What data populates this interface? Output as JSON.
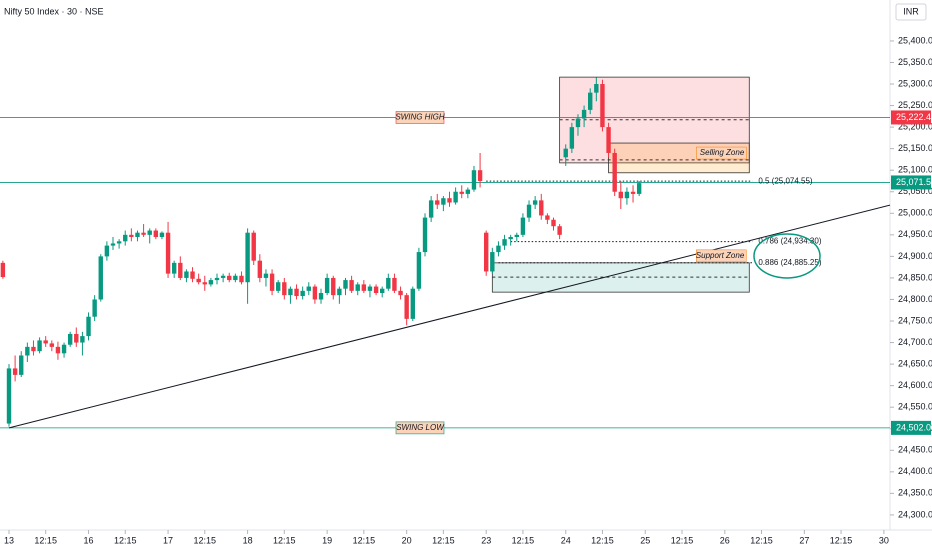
{
  "chart_data": {
    "type": "candlestick",
    "title": "Nifty 50 Index · 30 · NSE",
    "currency": "INR",
    "up_color": "#089981",
    "down_color": "#f23645",
    "x": [
      -1,
      0,
      1,
      2,
      3,
      4,
      5,
      6,
      7,
      8,
      9,
      10,
      11,
      12,
      13,
      14,
      15,
      16,
      17,
      18,
      19,
      20,
      21,
      22,
      23,
      24,
      25,
      26,
      27,
      28,
      29,
      30,
      31,
      32,
      33,
      34,
      35,
      36,
      37,
      38,
      39,
      40,
      41,
      42,
      43,
      44,
      45,
      46,
      47,
      48,
      49,
      50,
      51,
      52,
      53,
      54,
      55,
      56,
      57,
      58,
      59,
      60,
      61,
      62,
      63,
      64,
      65,
      66,
      67,
      68,
      69,
      70,
      71,
      72,
      73,
      74,
      75,
      76,
      77,
      78,
      79,
      80,
      81,
      82,
      83,
      84,
      85,
      86,
      87,
      88,
      89,
      90,
      91,
      92,
      93,
      94,
      95,
      96,
      97,
      98,
      99,
      100,
      101,
      102,
      103
    ],
    "open": [
      24885,
      24512,
      24640,
      24625,
      24670,
      24690,
      24680,
      24705,
      24698,
      24690,
      24675,
      24695,
      24720,
      24700,
      24715,
      24760,
      24800,
      24900,
      24925,
      24930,
      24935,
      24950,
      24945,
      24955,
      24950,
      24960,
      24945,
      24955,
      24860,
      24885,
      24850,
      24865,
      24848,
      24840,
      24835,
      24845,
      24850,
      24855,
      24845,
      24855,
      24840,
      24955,
      24890,
      24850,
      24860,
      24820,
      24840,
      24810,
      24825,
      24808,
      24820,
      24830,
      24800,
      24815,
      24850,
      24810,
      24825,
      24845,
      24820,
      24835,
      24820,
      24830,
      24815,
      24825,
      24850,
      24820,
      24810,
      24755,
      24825,
      24910,
      24990,
      25030,
      25020,
      25035,
      25025,
      25050,
      25045,
      25055,
      25100,
      24955,
      24865,
      24910,
      24925,
      24940,
      24945,
      24950,
      24990,
      25020,
      25030,
      24995,
      24985,
      24970,
      25130,
      25150,
      25200,
      25220,
      25240,
      25280,
      25300,
      25200,
      25140,
      25050,
      25035,
      25050,
      25045
    ],
    "high": [
      24890,
      24650,
      24670,
      24680,
      24700,
      24705,
      24712,
      24715,
      24705,
      24702,
      24700,
      24725,
      24735,
      24725,
      24770,
      24810,
      24905,
      24935,
      24945,
      24940,
      24960,
      24965,
      24960,
      24975,
      24965,
      24965,
      24958,
      24980,
      24890,
      24900,
      24870,
      24875,
      24860,
      24855,
      24850,
      24860,
      24860,
      24862,
      24860,
      24865,
      24965,
      24960,
      24905,
      24870,
      24870,
      24845,
      24850,
      24830,
      24835,
      24830,
      24840,
      24835,
      24825,
      24860,
      24855,
      24830,
      24850,
      24855,
      24840,
      24845,
      24835,
      24835,
      24830,
      24860,
      24860,
      24830,
      24815,
      24830,
      24920,
      25000,
      25040,
      25045,
      25040,
      25050,
      25060,
      25065,
      25060,
      25110,
      25140,
      24960,
      24920,
      24935,
      24950,
      24950,
      24955,
      25000,
      25030,
      25040,
      25045,
      25000,
      24990,
      24975,
      25160,
      25210,
      25230,
      25250,
      25290,
      25315,
      25310,
      25210,
      25150,
      25075,
      25060,
      25065,
      25075
    ],
    "low": [
      24848,
      24505,
      24610,
      24620,
      24655,
      24670,
      24675,
      24690,
      24680,
      24660,
      24665,
      24690,
      24690,
      24670,
      24705,
      24750,
      24795,
      24890,
      24915,
      24918,
      24925,
      24935,
      24935,
      24945,
      24930,
      24940,
      24940,
      24850,
      24850,
      24845,
      24840,
      24840,
      24835,
      24820,
      24830,
      24835,
      24840,
      24840,
      24840,
      24835,
      24790,
      24880,
      24840,
      24830,
      24810,
      24815,
      24800,
      24790,
      24800,
      24800,
      24810,
      24790,
      24790,
      24810,
      24800,
      24790,
      24810,
      24815,
      24810,
      24815,
      24805,
      24810,
      24805,
      24820,
      24815,
      24800,
      24740,
      24750,
      24820,
      24900,
      24980,
      25010,
      25005,
      25015,
      25020,
      25035,
      25035,
      25050,
      25060,
      24855,
      24860,
      24900,
      24915,
      24925,
      24935,
      24945,
      24980,
      25010,
      24985,
      24975,
      24960,
      24940,
      25110,
      25140,
      25180,
      25200,
      25230,
      25260,
      25190,
      25130,
      25040,
      25010,
      25020,
      25025,
      25040
    ],
    "close": [
      24852,
      24640,
      24625,
      24670,
      24690,
      24680,
      24705,
      24698,
      24690,
      24675,
      24695,
      24720,
      24700,
      24715,
      24760,
      24800,
      24900,
      24925,
      24930,
      24935,
      24950,
      24945,
      24955,
      24950,
      24960,
      24945,
      24955,
      24860,
      24885,
      24850,
      24865,
      24848,
      24840,
      24835,
      24845,
      24850,
      24855,
      24845,
      24855,
      24840,
      24955,
      24890,
      24850,
      24860,
      24820,
      24840,
      24810,
      24825,
      24808,
      24820,
      24830,
      24800,
      24815,
      24850,
      24810,
      24825,
      24845,
      24820,
      24835,
      24820,
      24830,
      24815,
      24825,
      24850,
      24820,
      24810,
      24755,
      24825,
      24910,
      24990,
      25030,
      25020,
      25035,
      25025,
      25050,
      25045,
      25055,
      25100,
      25075,
      24865,
      24910,
      24925,
      24940,
      24945,
      24950,
      24990,
      25020,
      25030,
      24995,
      24985,
      24970,
      24950,
      25150,
      25200,
      25220,
      25240,
      25280,
      25300,
      25200,
      25140,
      25050,
      25035,
      25050,
      25045,
      25070
    ],
    "xlim": [
      -1.47,
      144
    ],
    "xticks": [
      {
        "value": 0,
        "label": "13"
      },
      {
        "value": 6,
        "label": "12:15"
      },
      {
        "value": 13,
        "label": "16"
      },
      {
        "value": 19,
        "label": "12:15"
      },
      {
        "value": 26,
        "label": "17"
      },
      {
        "value": 32,
        "label": "12:15"
      },
      {
        "value": 39,
        "label": "18"
      },
      {
        "value": 45,
        "label": "12:15"
      },
      {
        "value": 52,
        "label": "19"
      },
      {
        "value": 58,
        "label": "12:15"
      },
      {
        "value": 65,
        "label": "20"
      },
      {
        "value": 71,
        "label": "12:15"
      },
      {
        "value": 78,
        "label": "23"
      },
      {
        "value": 84,
        "label": "12:15"
      },
      {
        "value": 91,
        "label": "24"
      },
      {
        "value": 97,
        "label": "12:15"
      },
      {
        "value": 104,
        "label": "25"
      },
      {
        "value": 110,
        "label": "12:15"
      },
      {
        "value": 117,
        "label": "26"
      },
      {
        "value": 123,
        "label": "12:15"
      },
      {
        "value": 130,
        "label": "27"
      },
      {
        "value": 136,
        "label": "12:15"
      },
      {
        "value": 143,
        "label": "30"
      }
    ],
    "ylim": [
      24265,
      25495
    ],
    "yticks": [
      {
        "value": 24300,
        "label": "24,300.00"
      },
      {
        "value": 24350,
        "label": "24,350.00"
      },
      {
        "value": 24400,
        "label": "24,400.00"
      },
      {
        "value": 24450,
        "label": "24,450.00"
      },
      {
        "value": 24500,
        "label": "24,500.00"
      },
      {
        "value": 24550,
        "label": "24,550.00"
      },
      {
        "value": 24600,
        "label": "24,600.00"
      },
      {
        "value": 24650,
        "label": "24,650.00"
      },
      {
        "value": 24700,
        "label": "24,700.00"
      },
      {
        "value": 24750,
        "label": "24,750.00"
      },
      {
        "value": 24800,
        "label": "24,800.00"
      },
      {
        "value": 24850,
        "label": "24,850.00"
      },
      {
        "value": 24900,
        "label": "24,900.00"
      },
      {
        "value": 24950,
        "label": "24,950.00"
      },
      {
        "value": 25000,
        "label": "25,000.00"
      },
      {
        "value": 25050,
        "label": "25,050.00"
      },
      {
        "value": 25100,
        "label": "25,100.00"
      },
      {
        "value": 25150,
        "label": "25,150.00"
      },
      {
        "value": 25200,
        "label": "25,200.00"
      },
      {
        "value": 25250,
        "label": "25,250.00"
      },
      {
        "value": 25300,
        "label": "25,300.00"
      },
      {
        "value": 25350,
        "label": "25,350.00"
      },
      {
        "value": 25400,
        "label": "25,400.00"
      }
    ],
    "grid": false,
    "levels": [
      {
        "label": "SWING HIGH",
        "value": 25222.4,
        "price_label": "25,222.40",
        "color": "#f23645"
      },
      {
        "label": "SWING LOW",
        "value": 24502,
        "price_label": "24,502.00",
        "color": "#089981"
      },
      {
        "value": 25071.55,
        "price_label": "25,071.55",
        "color": "#089981"
      }
    ],
    "boxes": [
      {
        "top": 25316,
        "bottom": 25117,
        "x0": 90,
        "x1": 121,
        "fill": "rgba(242,54,69,0.16)",
        "stroke": "#333333"
      },
      {
        "label": "Selling Zone",
        "top": 25163,
        "bottom": 25094,
        "x0": 98,
        "x1": 121,
        "fill": "rgba(255,152,0,0.18)",
        "stroke": "#333333"
      },
      {
        "label": "Support Zone",
        "top": 24885,
        "bottom": 24817,
        "x0": 79,
        "x1": 121,
        "fill": "rgba(8,153,129,0.14)",
        "stroke": "#333333"
      }
    ],
    "dashed_lines": [
      {
        "value": 25217,
        "x0": 90,
        "x1": 121
      },
      {
        "value": 25124,
        "x0": 90,
        "x1": 121
      },
      {
        "value": 24852,
        "x0": 79,
        "x1": 121
      }
    ],
    "fib_levels": [
      {
        "label": "0.5 (25,074.55)",
        "value": 25074.55,
        "x0": 78,
        "x1": 121.5
      },
      {
        "label": "0.786 (24,934.30)",
        "value": 24934.3,
        "x0": 82,
        "x1": 121.5
      },
      {
        "label": "0.886 (24,885.25)",
        "value": 24885.25,
        "x0": 80,
        "x1": 121.5
      }
    ],
    "trendline": {
      "x": [
        0,
        144
      ],
      "y": [
        24502,
        25019
      ]
    }
  }
}
